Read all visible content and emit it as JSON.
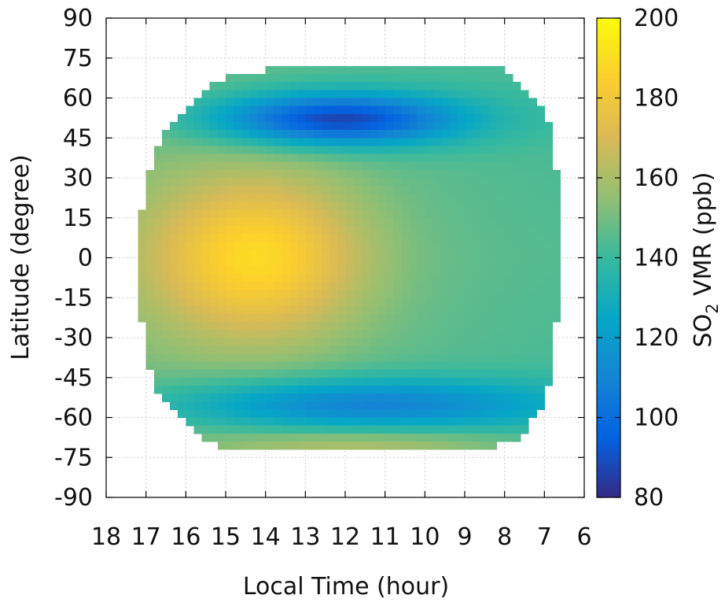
{
  "chart_data": {
    "type": "heatmap",
    "title": "",
    "xlabel": "Local Time (hour)",
    "ylabel": "Latitude (degree)",
    "colorbar_label_main": "SO",
    "colorbar_label_sub": "2",
    "colorbar_label_rest": " VMR (ppb)",
    "xlim": [
      18,
      6
    ],
    "ylim": [
      -90,
      90
    ],
    "x_ticks": [
      "18",
      "17",
      "16",
      "15",
      "14",
      "13",
      "12",
      "11",
      "10",
      "9",
      "8",
      "7",
      "6"
    ],
    "y_ticks": [
      "90",
      "75",
      "60",
      "45",
      "30",
      "15",
      "0",
      "-15",
      "-30",
      "-45",
      "-60",
      "-75",
      "-90"
    ],
    "colorbar_ticks": [
      "200",
      "180",
      "160",
      "140",
      "120",
      "100",
      "80"
    ],
    "clim": [
      80,
      200
    ],
    "grid": true,
    "colormap": [
      "#352a87",
      "#0363e1",
      "#1485d4",
      "#06a7c6",
      "#38b99e",
      "#92bf73",
      "#d9ba56",
      "#fcce2e",
      "#f9fb0e"
    ],
    "data_extent_by_latitude": [
      {
        "lat": 72,
        "lt_start": 13.3,
        "lt_end": 8.3
      },
      {
        "lat": 69,
        "lt_start": 14.8,
        "lt_end": 7.9
      },
      {
        "lat": 63,
        "lt_start": 15.6,
        "lt_end": 7.4
      },
      {
        "lat": 57,
        "lt_start": 16.0,
        "lt_end": 7.1
      },
      {
        "lat": 48,
        "lt_start": 16.6,
        "lt_end": 6.8
      },
      {
        "lat": 33,
        "lt_start": 16.9,
        "lt_end": 6.7
      },
      {
        "lat": 18,
        "lt_start": 17.1,
        "lt_end": 6.6
      },
      {
        "lat": 0,
        "lt_start": 17.2,
        "lt_end": 6.5
      },
      {
        "lat": -24,
        "lt_start": 17.1,
        "lt_end": 6.7
      },
      {
        "lat": -42,
        "lt_start": 16.9,
        "lt_end": 6.8
      },
      {
        "lat": -54,
        "lt_start": 16.6,
        "lt_end": 7.0
      },
      {
        "lat": -63,
        "lt_start": 16.0,
        "lt_end": 7.4
      },
      {
        "lat": -69,
        "lt_start": 15.5,
        "lt_end": 7.8
      },
      {
        "lat": -73,
        "lt_start": 14.9,
        "lt_end": 8.9
      }
    ],
    "features": [
      {
        "lt": 14.2,
        "lat": 0,
        "value": 188,
        "sx": 1.9,
        "sy": 22
      },
      {
        "lt": 12.2,
        "lat": 52,
        "value": 88,
        "sx": 2.2,
        "sy": 7
      },
      {
        "lt": 11.5,
        "lat": -55,
        "value": 112,
        "sx": 3.5,
        "sy": 7
      },
      {
        "lt": 11.5,
        "lat": -70,
        "value": 165,
        "sx": 3.0,
        "sy": 4
      }
    ]
  }
}
